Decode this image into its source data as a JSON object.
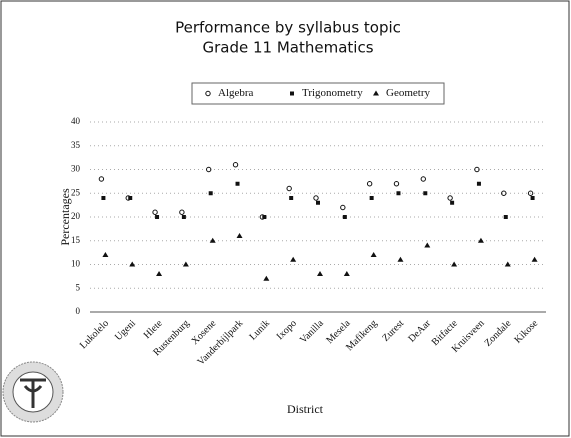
{
  "chart_data": {
    "type": "scatter",
    "title": "Performance by syllabus topic",
    "subtitle": "Grade 11 Mathematics",
    "x_label": "District",
    "y_label": "Percentages",
    "categories": [
      "Lukolelo",
      "Ugeni",
      "Hlete",
      "Rustenburg",
      "Xosene",
      "Vanderbijlpark",
      "Lunik",
      "Ixopo",
      "Vanilla",
      "Mesela",
      "Mafikeng",
      "Zurest",
      "DeAar",
      "Bitfacte",
      "Kruisveen",
      "Zondale",
      "Kikose"
    ],
    "series": [
      {
        "name": "Algebra",
        "color": "#111111",
        "values": [
          28,
          24,
          21,
          21,
          30,
          31,
          20,
          26,
          24,
          22,
          27,
          27,
          28,
          24,
          30,
          25,
          25
        ]
      },
      {
        "name": "Trigonometry",
        "color": "#111111",
        "values": [
          24,
          24,
          20,
          20,
          25,
          27,
          20,
          24,
          23,
          20,
          24,
          25,
          25,
          23,
          27,
          20,
          24
        ]
      },
      {
        "name": "Geometry",
        "color": "#111111",
        "values": [
          12,
          10,
          8,
          10,
          15,
          16,
          7,
          11,
          8,
          8,
          12,
          11,
          14,
          10,
          15,
          10,
          11
        ]
      }
    ],
    "ylim": [
      0,
      40
    ],
    "yticks": [
      0,
      5,
      10,
      15,
      20,
      25,
      30,
      35,
      40
    ],
    "grid": true,
    "legend": "top"
  }
}
